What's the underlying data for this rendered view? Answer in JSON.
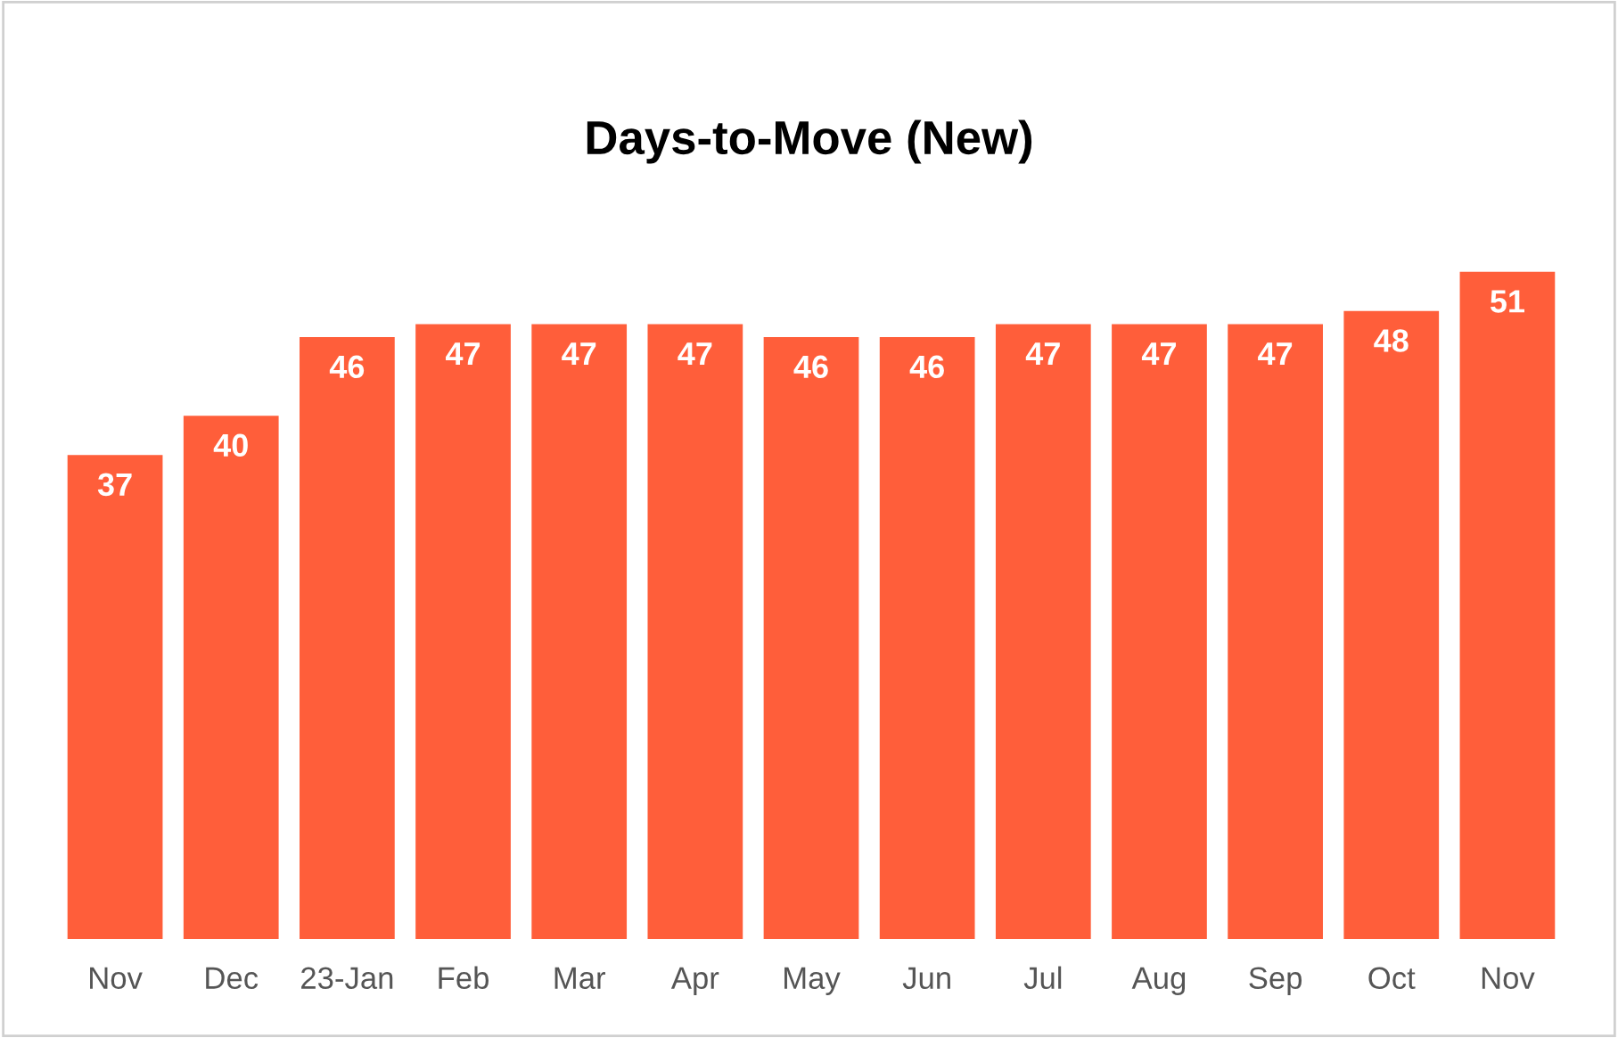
{
  "chart_data": {
    "type": "bar",
    "title": "Days-to-Move (New)",
    "categories": [
      "Nov",
      "Dec",
      "23-Jan",
      "Feb",
      "Mar",
      "Apr",
      "May",
      "Jun",
      "Jul",
      "Aug",
      "Sep",
      "Oct",
      "Nov"
    ],
    "values": [
      37,
      40,
      46,
      47,
      47,
      47,
      46,
      46,
      47,
      47,
      47,
      48,
      51
    ],
    "color": "#ff5e3a",
    "data_labels": true,
    "tick_labels": "x",
    "grid": false,
    "legend": false
  }
}
